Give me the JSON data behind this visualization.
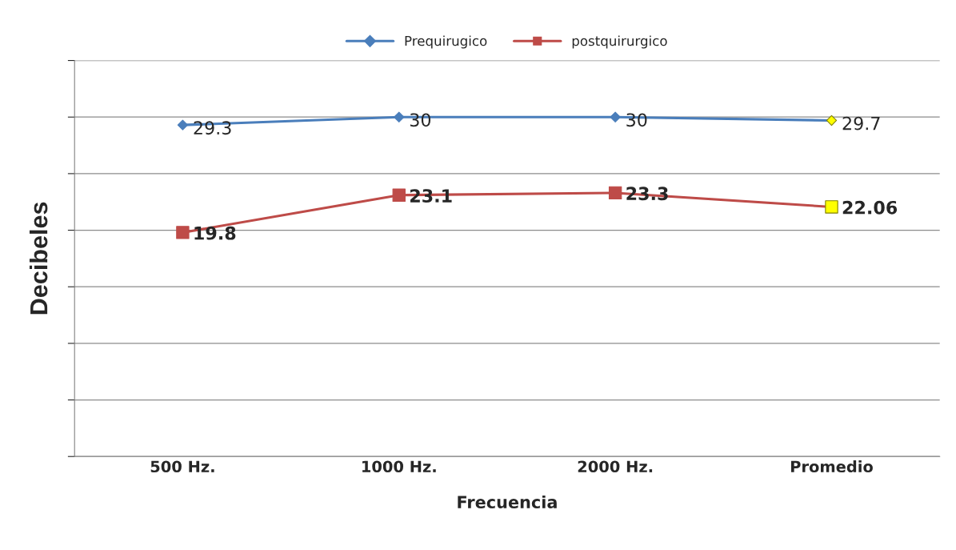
{
  "chart_data": {
    "type": "line",
    "xlabel": "Frecuencia",
    "ylabel": "Decibeles",
    "categories": [
      "500 Hz.",
      "1000 Hz.",
      "2000 Hz.",
      "Promedio"
    ],
    "series": [
      {
        "name": "Prequirugico",
        "color": "#4a7ebb",
        "marker": "diamond",
        "colors": [
          "#4a7ebb",
          "#4a7ebb",
          "#4a7ebb",
          "#ffff00"
        ],
        "values": [
          29.3,
          30,
          30,
          29.7
        ]
      },
      {
        "name": "postquirurgico",
        "color": "#be4b48",
        "marker": "square",
        "colors": [
          "#be4b48",
          "#be4b48",
          "#be4b48",
          "#ffff00"
        ],
        "values": [
          19.8,
          23.1,
          23.3,
          22.06
        ]
      }
    ],
    "ylim": [
      0,
      35
    ],
    "yticks": [
      {
        "value": 0,
        "label": null
      },
      {
        "value": 5,
        "label": null
      },
      {
        "value": 10,
        "label": null
      },
      {
        "value": 15,
        "label": null
      },
      {
        "value": 20,
        "label": null
      },
      {
        "value": 25,
        "label": null
      },
      {
        "value": 30,
        "label": null
      },
      {
        "value": 35,
        "label": null
      }
    ],
    "tick_labels": "x",
    "grid": "y",
    "legend": "top",
    "data_labels": true
  }
}
